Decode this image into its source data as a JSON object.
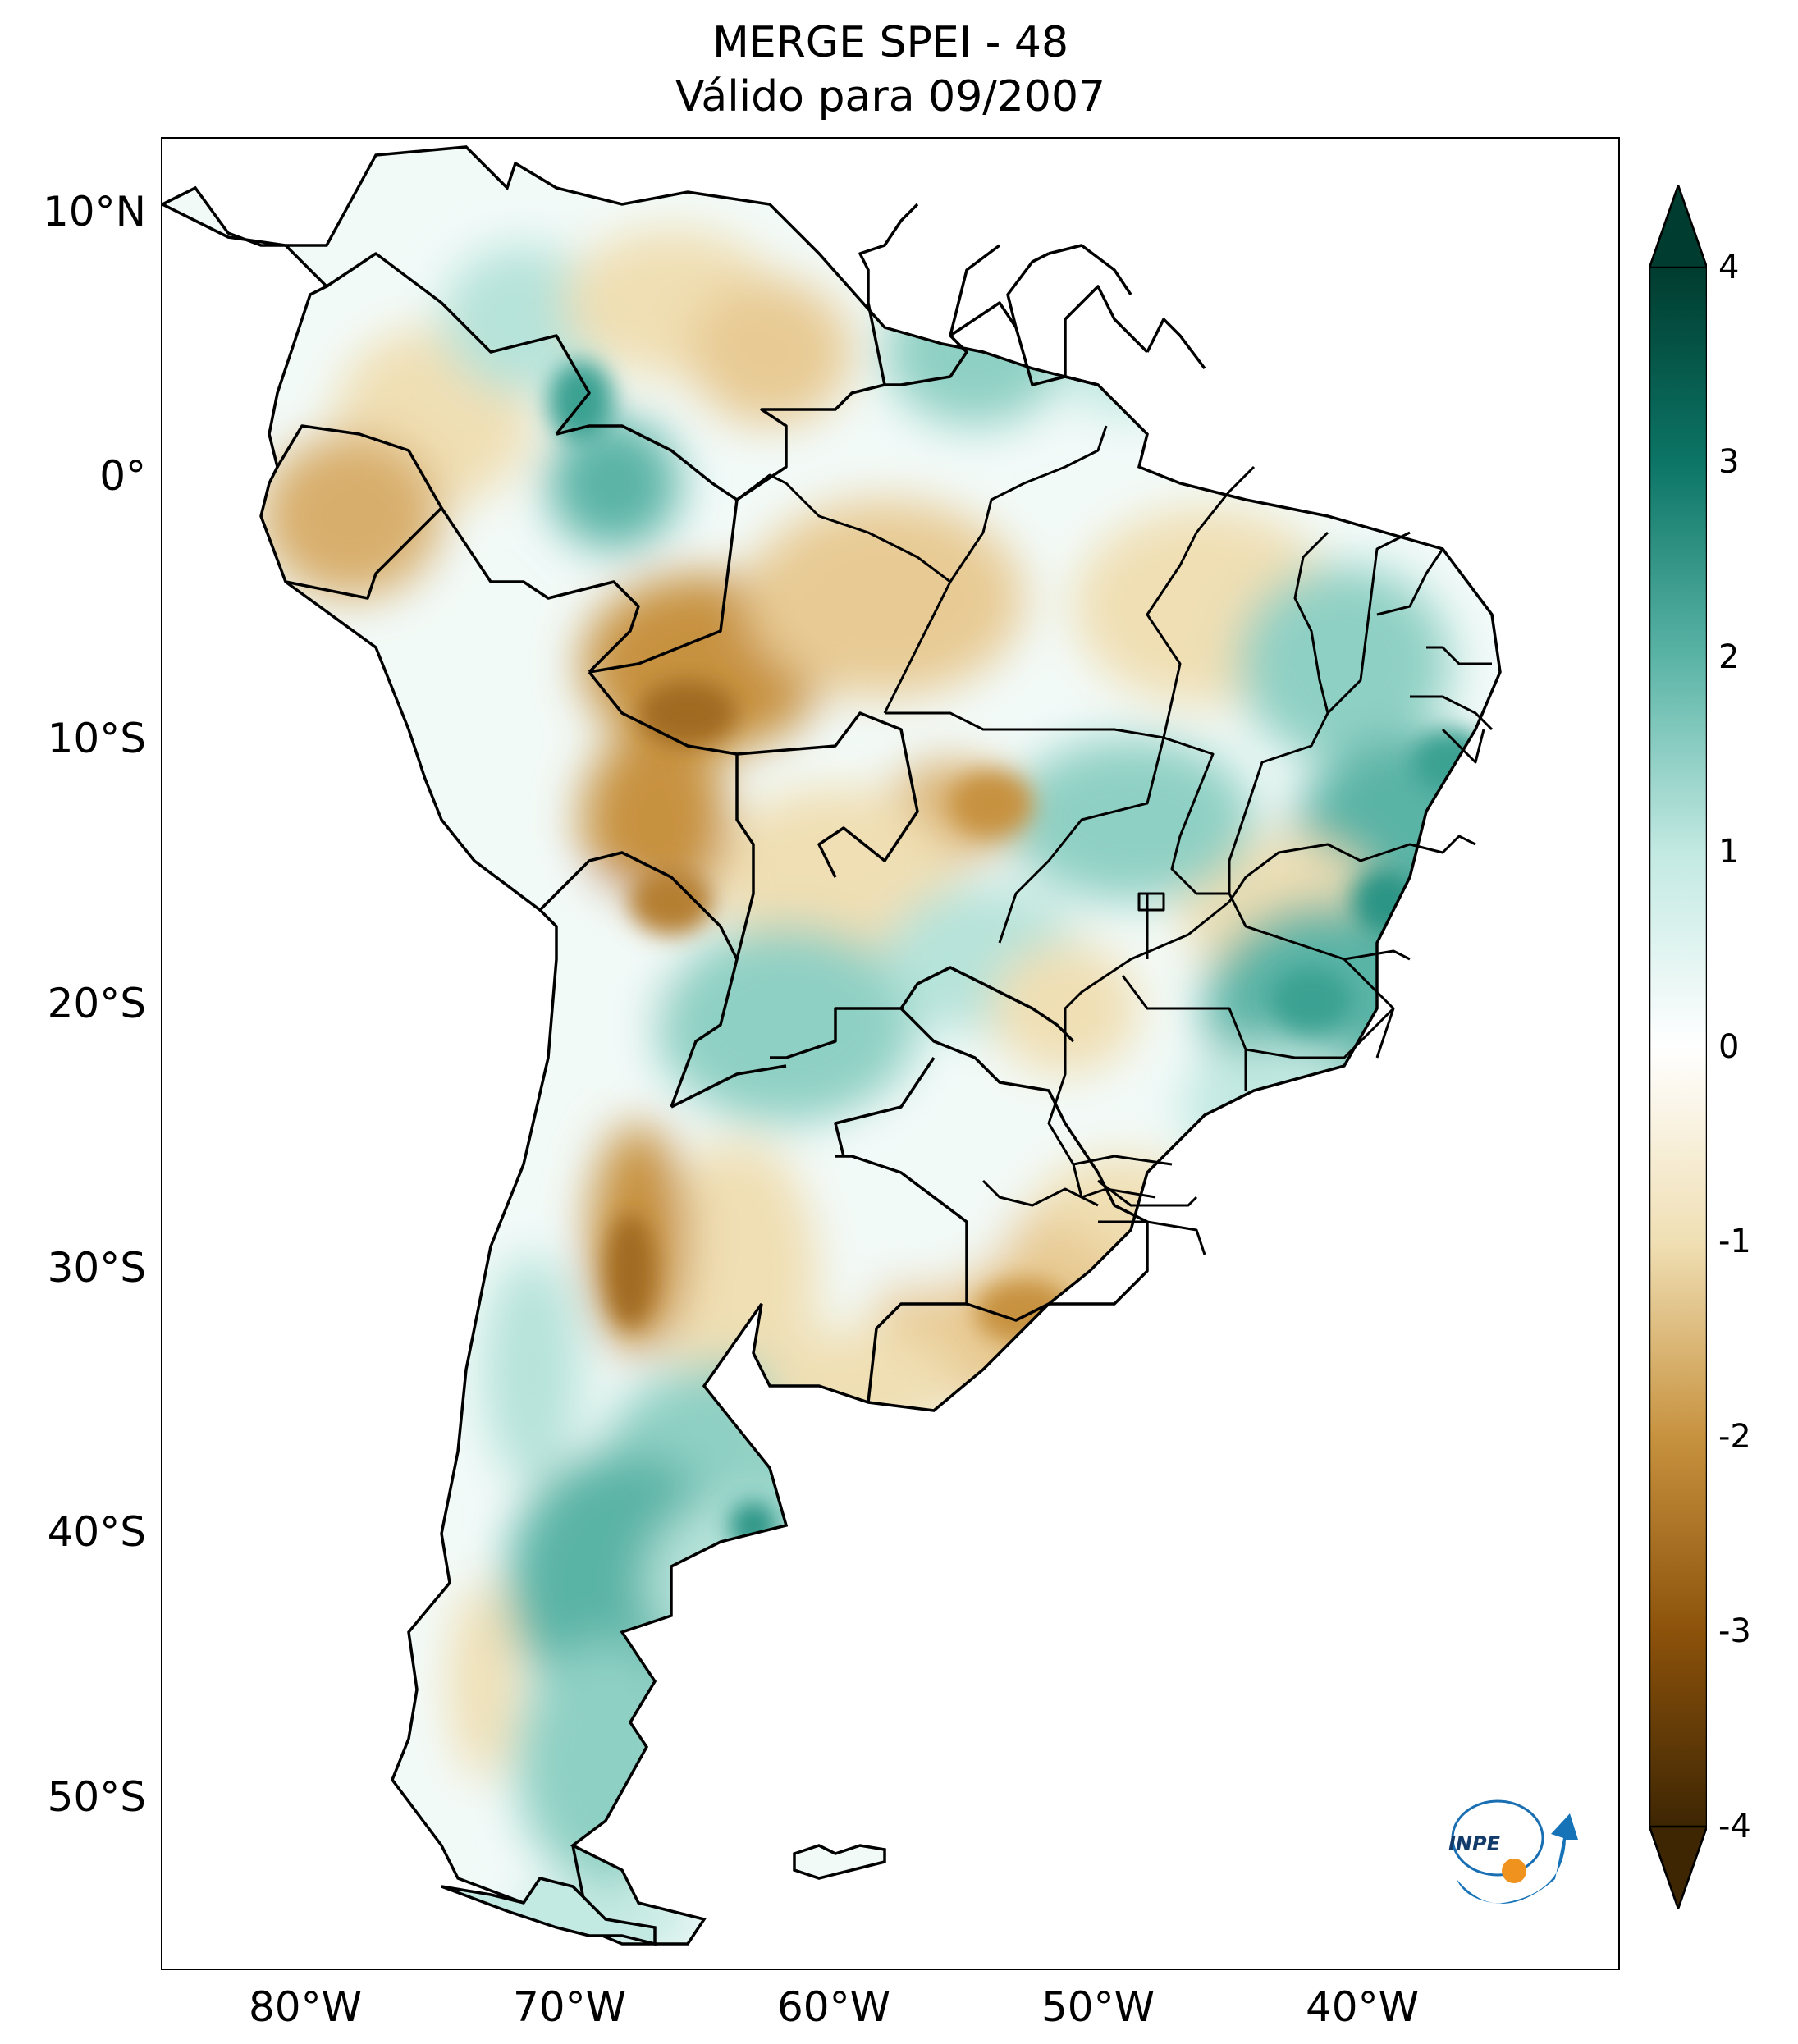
{
  "title": {
    "line1": "MERGE   SPEI - 48",
    "line2": "Válido para 09/2007"
  },
  "map": {
    "lat_ticks": [
      "10°N",
      "0°",
      "10°S",
      "20°S",
      "30°S",
      "40°S",
      "50°S"
    ],
    "lat_values": [
      10,
      0,
      -10,
      -20,
      -30,
      -40,
      -50
    ],
    "lon_ticks": [
      "80°W",
      "70°W",
      "60°W",
      "50°W",
      "40°W"
    ],
    "lon_values": [
      -80,
      -70,
      -60,
      -50,
      -40
    ],
    "extent": {
      "lon": [
        -85,
        -30
      ],
      "lat": [
        -56,
        13
      ]
    }
  },
  "colorbar": {
    "ticks": [
      "4",
      "3",
      "2",
      "1",
      "0",
      "-1",
      "-2",
      "-3",
      "-4"
    ],
    "range": [
      -4,
      4
    ],
    "extend": "both",
    "colors": {
      "dry_extreme": "#3e2603",
      "dry_strong": "#8c520b",
      "dry_moderate": "#c7923f",
      "dry_mild": "#f0dfb4",
      "neutral": "#ffffff",
      "wet_mild": "#c2e9e2",
      "wet_moderate": "#5ab4a6",
      "wet_strong": "#0c7566",
      "wet_extreme": "#003c2f"
    }
  },
  "logo": {
    "text": "INPE",
    "icon": "inpe-logo-icon"
  }
}
